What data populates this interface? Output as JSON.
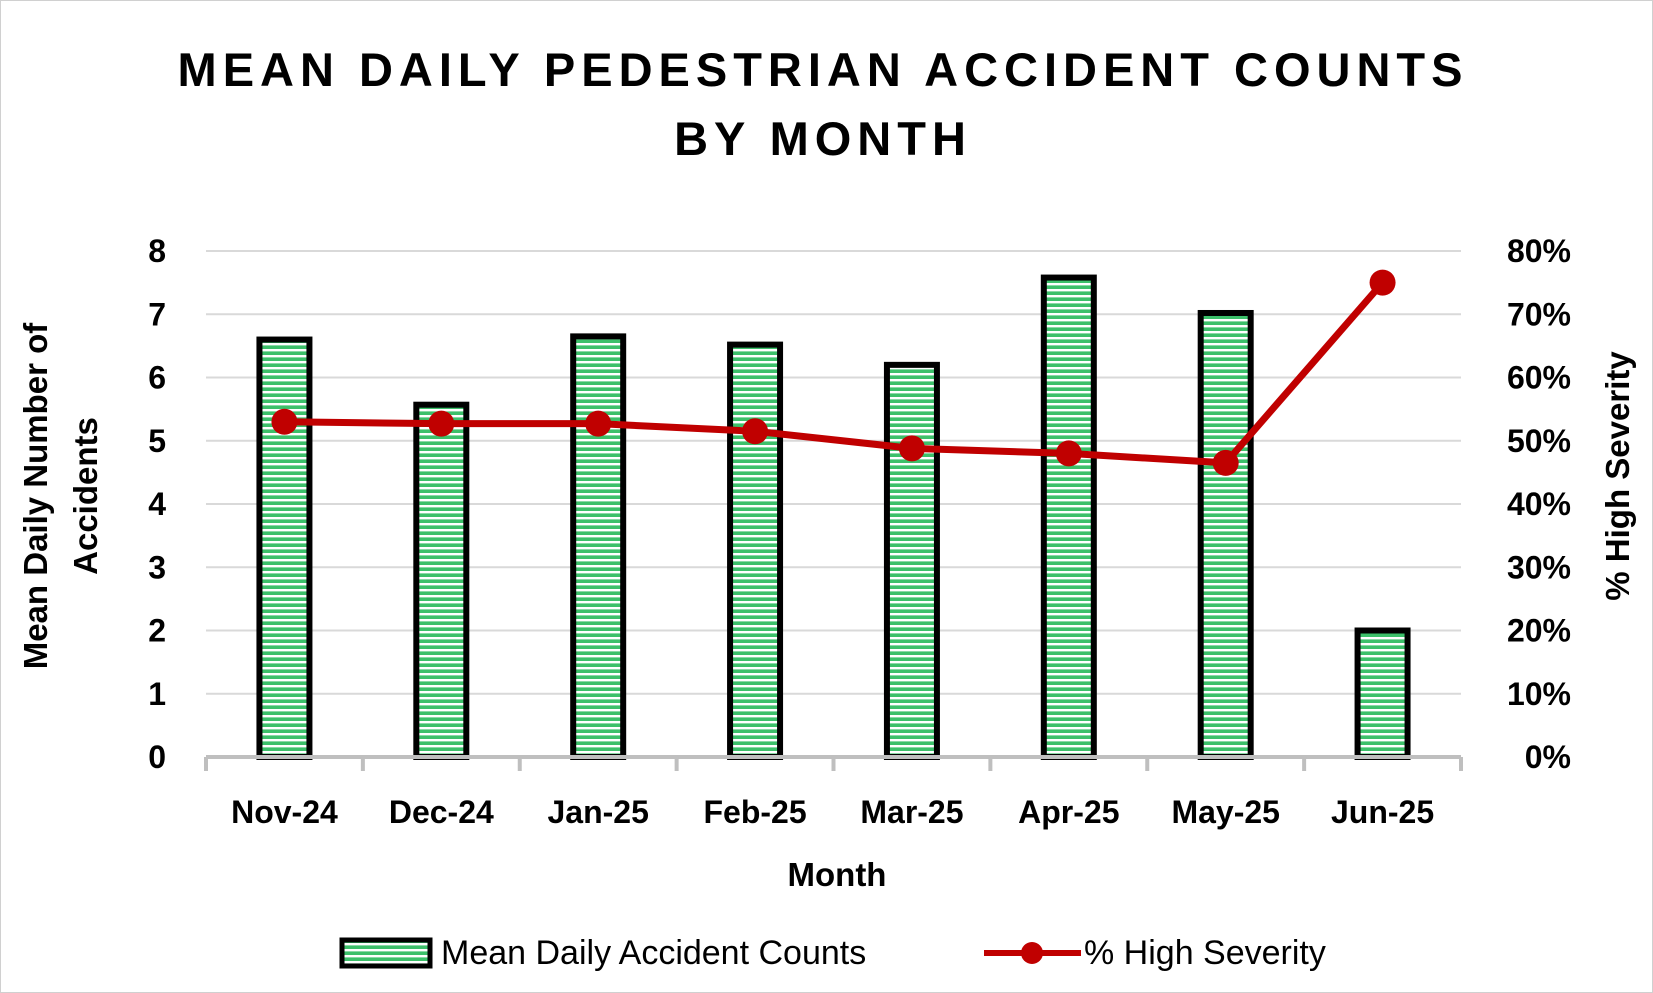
{
  "chart_data": {
    "type": "bar",
    "title": "MEAN DAILY PEDESTRIAN ACCIDENT COUNTS BY MONTH",
    "title_lines": [
      "MEAN DAILY PEDESTRIAN ACCIDENT COUNTS",
      "BY MONTH"
    ],
    "categories": [
      "Nov-24",
      "Dec-24",
      "Jan-25",
      "Feb-25",
      "Mar-25",
      "Apr-25",
      "May-25",
      "Jun-25"
    ],
    "series": [
      {
        "name": "Mean Daily Accident Counts",
        "type": "bar",
        "axis": "left",
        "values": [
          6.6,
          5.57,
          6.65,
          6.52,
          6.2,
          7.58,
          7.02,
          2.0
        ]
      },
      {
        "name": "% High Severity",
        "type": "line",
        "axis": "right",
        "values": [
          0.53,
          0.527,
          0.527,
          0.515,
          0.488,
          0.48,
          0.465,
          0.75
        ]
      }
    ],
    "xlabel": "Month",
    "ylabel": "Mean Daily Number of Accidents",
    "ylabel_lines": [
      "Mean Daily Number of",
      "Accidents"
    ],
    "y2label": "% High Severity",
    "ylim": [
      0,
      8
    ],
    "y_ticks": [
      "0",
      "1",
      "2",
      "3",
      "4",
      "5",
      "6",
      "7",
      "8"
    ],
    "y2lim": [
      0,
      0.8
    ],
    "y2_ticks": [
      "0%",
      "10%",
      "20%",
      "30%",
      "40%",
      "50%",
      "60%",
      "70%",
      "80%"
    ],
    "grid": true,
    "legend_position": "bottom",
    "colors": {
      "bar_fill": "#3cc06a",
      "bar_stripe": "#ffffff",
      "bar_outline": "#000000",
      "line": "#c00000",
      "grid": "#d9d9d9",
      "axis": "#bfbfbf"
    }
  }
}
